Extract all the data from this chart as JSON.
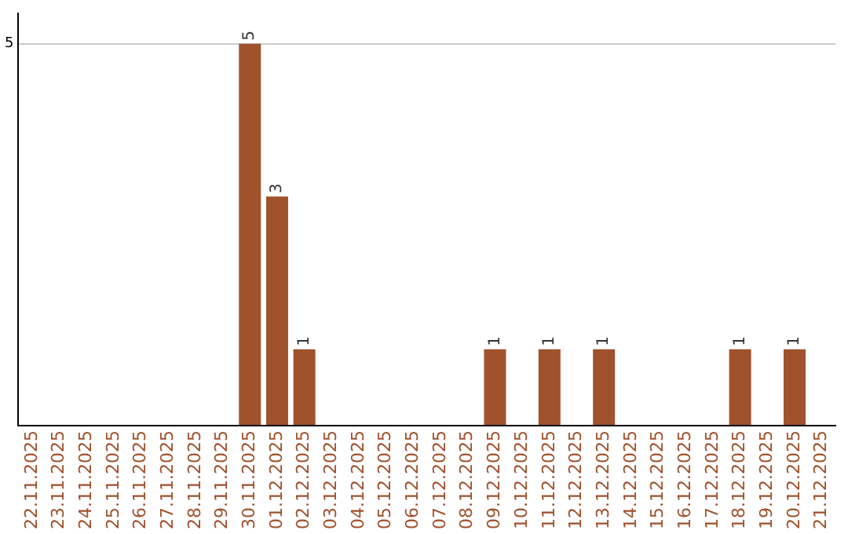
{
  "chart_data": {
    "type": "bar",
    "categories": [
      "22.11.2025",
      "23.11.2025",
      "24.11.2025",
      "25.11.2025",
      "26.11.2025",
      "27.11.2025",
      "28.11.2025",
      "29.11.2025",
      "30.11.2025",
      "01.12.2025",
      "02.12.2025",
      "03.12.2025",
      "04.12.2025",
      "05.12.2025",
      "06.12.2025",
      "07.12.2025",
      "08.12.2025",
      "09.12.2025",
      "10.12.2025",
      "11.12.2025",
      "12.12.2025",
      "13.12.2025",
      "14.12.2025",
      "15.12.2025",
      "16.12.2025",
      "17.12.2025",
      "18.12.2025",
      "19.12.2025",
      "20.12.2025",
      "21.12.2025"
    ],
    "values": [
      0,
      0,
      0,
      0,
      0,
      0,
      0,
      0,
      5,
      3,
      1,
      0,
      0,
      0,
      0,
      0,
      0,
      1,
      0,
      1,
      0,
      1,
      0,
      0,
      0,
      0,
      1,
      0,
      1,
      0
    ],
    "value_labels": [
      null,
      null,
      null,
      null,
      null,
      null,
      null,
      null,
      "5",
      "3",
      "1",
      null,
      null,
      null,
      null,
      null,
      null,
      "1",
      null,
      "1",
      null,
      "1",
      null,
      null,
      null,
      null,
      "1",
      null,
      "1",
      null
    ],
    "color": "#a0522d",
    "ylim": [
      0,
      5.4
    ],
    "yticks": [
      {
        "value": 0,
        "label": null
      },
      5
    ],
    "grid": "y"
  }
}
